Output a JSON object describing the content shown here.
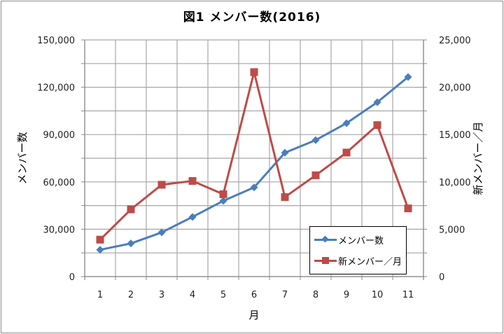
{
  "chart_data": {
    "type": "line",
    "title": "図1 メンバー数(2016)",
    "xlabel": "月",
    "ylabel": "メンバー数",
    "y2label": "新メンバー／月",
    "categories": [
      "1",
      "2",
      "3",
      "4",
      "5",
      "6",
      "7",
      "8",
      "9",
      "10",
      "11"
    ],
    "ylim": [
      0,
      150000
    ],
    "y2lim": [
      0,
      25000
    ],
    "yticks": [
      "0",
      "30,000",
      "60,000",
      "90,000",
      "120,000",
      "150,000"
    ],
    "y2ticks": [
      "0",
      "5,000",
      "10,000",
      "15,000",
      "20,000",
      "25,000"
    ],
    "grid": true,
    "legend_position": "bottom-right inside",
    "series": [
      {
        "name": "メンバー数",
        "axis": "left",
        "color": "#4A7EBB",
        "marker": "diamond",
        "values": [
          17000,
          21000,
          28000,
          37800,
          48000,
          56500,
          78500,
          86500,
          97200,
          110500,
          126500
        ]
      },
      {
        "name": "新メンバー／月",
        "axis": "right",
        "color": "#BE4B48",
        "marker": "square",
        "values": [
          3900,
          7100,
          9700,
          10100,
          8700,
          21600,
          8400,
          10700,
          13100,
          16000,
          7200
        ]
      }
    ]
  },
  "colors": {
    "grid": "#a6a6a6",
    "axis": "#8c8c8c",
    "border": "#8c8c8c"
  }
}
